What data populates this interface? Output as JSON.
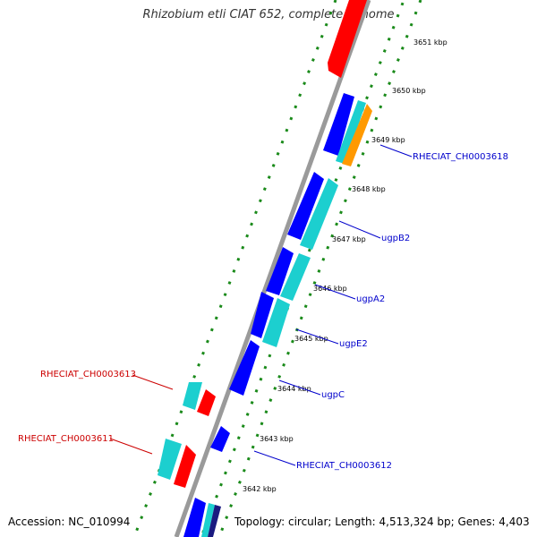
{
  "title": "Rhizobium etli CIAT 652, complete genome",
  "footer": {
    "accession": "Accession: NC_010994",
    "summary": "Topology: circular; Length: 4,513,324 bp; Genes: 4,403"
  },
  "colors": {
    "background": "#ffffff",
    "backbone": "#9a9a9a",
    "dots": "#1a8a1a",
    "forward_label": "#0000cc",
    "reverse_label": "#cc0000",
    "gene_blue": "#0000ff",
    "gene_cyan": "#1ccfcf",
    "gene_red": "#ff0000",
    "gene_orange": "#ff9900",
    "gene_navy": "#1a1a80"
  },
  "ticks": [
    "3651 kbp",
    "3650 kbp",
    "3649 kbp",
    "3648 kbp",
    "3647 kbp",
    "3646 kbp",
    "3645 kbp",
    "3644 kbp",
    "3643 kbp",
    "3642 kbp"
  ],
  "gene_labels": {
    "forward": [
      "RHECIAT_CH0003618",
      "ugpB2",
      "ugpA2",
      "ugpE2",
      "ugpC",
      "RHECIAT_CH0003612"
    ],
    "reverse": [
      "RHECIAT_CH0003613",
      "RHECIAT_CH0003611"
    ]
  }
}
